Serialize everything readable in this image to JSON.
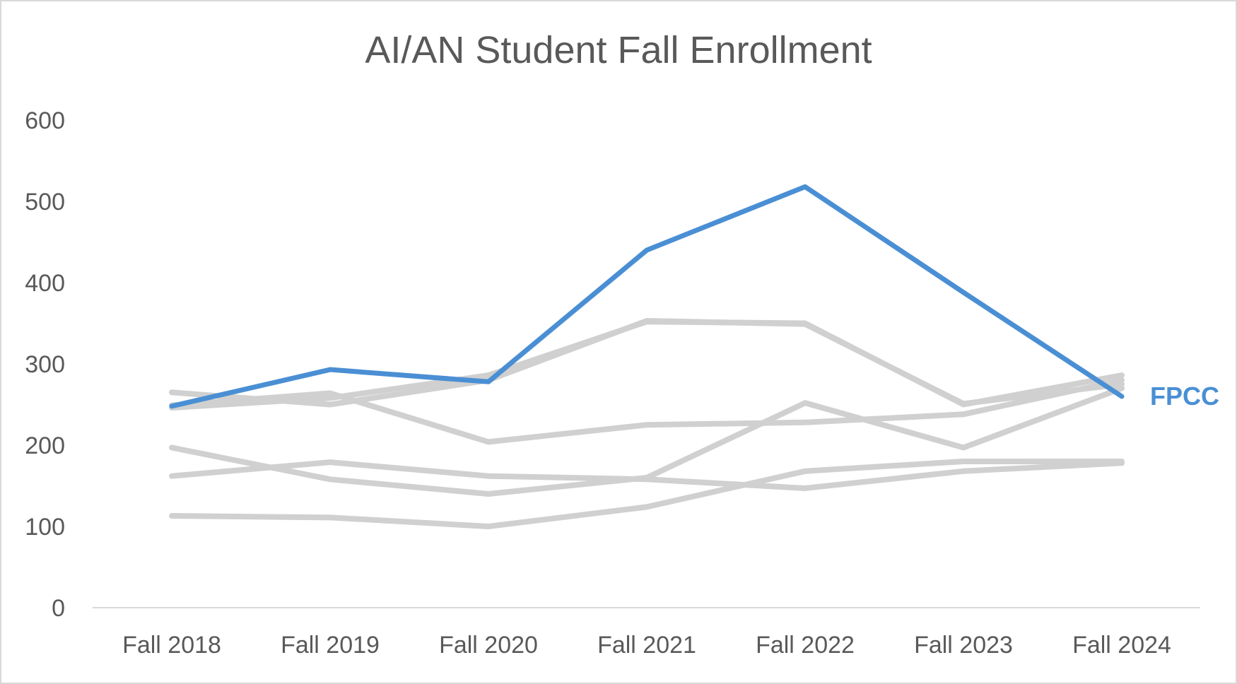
{
  "chart_data": {
    "type": "line",
    "title": "AI/AN Student Fall Enrollment",
    "xlabel": "",
    "ylabel": "",
    "categories": [
      "Fall 2018",
      "Fall 2019",
      "Fall 2020",
      "Fall 2021",
      "Fall 2022",
      "Fall 2023",
      "Fall 2024"
    ],
    "ylim": [
      0,
      600
    ],
    "yticks": [
      "0",
      "100",
      "200",
      "300",
      "400",
      "500",
      "600"
    ],
    "grid": false,
    "highlight_color": "#4a8fd4",
    "muted_color": "#d0d0d0",
    "series": [
      {
        "values": [
          248,
          293,
          278,
          440,
          518,
          388,
          260
        ],
        "name": "FPCC",
        "highlight": true
      },
      {
        "values": [
          246,
          258,
          286,
          352,
          350,
          250,
          286
        ],
        "highlight": false
      },
      {
        "values": [
          265,
          250,
          280,
          353,
          349,
          251,
          275
        ],
        "highlight": false
      },
      {
        "values": [
          249,
          264,
          204,
          225,
          228,
          238,
          280
        ],
        "highlight": false
      },
      {
        "values": [
          197,
          158,
          140,
          160,
          252,
          197,
          270
        ],
        "highlight": false
      },
      {
        "values": [
          162,
          179,
          162,
          158,
          147,
          168,
          178
        ],
        "highlight": false
      },
      {
        "values": [
          113,
          111,
          100,
          124,
          168,
          180,
          180
        ],
        "highlight": false
      }
    ]
  }
}
